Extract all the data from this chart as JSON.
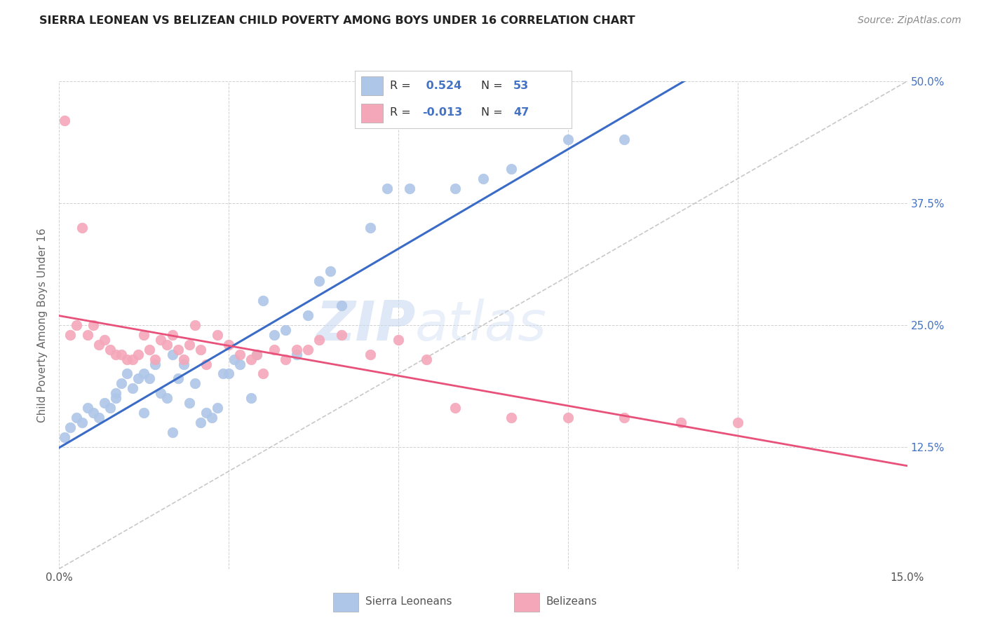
{
  "title": "SIERRA LEONEAN VS BELIZEAN CHILD POVERTY AMONG BOYS UNDER 16 CORRELATION CHART",
  "source": "Source: ZipAtlas.com",
  "ylabel": "Child Poverty Among Boys Under 16",
  "xlim": [
    0.0,
    0.15
  ],
  "ylim": [
    0.0,
    0.5
  ],
  "xticks": [
    0.0,
    0.03,
    0.06,
    0.09,
    0.12,
    0.15
  ],
  "xticklabels": [
    "0.0%",
    "",
    "",
    "",
    "",
    "15.0%"
  ],
  "yticks": [
    0.0,
    0.125,
    0.25,
    0.375,
    0.5
  ],
  "yticklabels": [
    "",
    "12.5%",
    "25.0%",
    "37.5%",
    "50.0%"
  ],
  "sierra_R": 0.524,
  "sierra_N": 53,
  "belizean_R": -0.013,
  "belizean_N": 47,
  "sierra_color": "#aec6e8",
  "sierra_line_color": "#3a6bc7",
  "belizean_color": "#f4a7b9",
  "belizean_line_color": "#e8517a",
  "diagonal_color": "#bbbbbb",
  "watermark_zip": "ZIP",
  "watermark_atlas": "atlas",
  "sierra_x": [
    0.001,
    0.002,
    0.003,
    0.004,
    0.005,
    0.006,
    0.007,
    0.008,
    0.009,
    0.01,
    0.01,
    0.011,
    0.012,
    0.013,
    0.014,
    0.015,
    0.015,
    0.016,
    0.017,
    0.018,
    0.019,
    0.02,
    0.02,
    0.021,
    0.022,
    0.023,
    0.024,
    0.025,
    0.026,
    0.027,
    0.028,
    0.029,
    0.03,
    0.031,
    0.032,
    0.034,
    0.035,
    0.036,
    0.038,
    0.04,
    0.042,
    0.044,
    0.046,
    0.048,
    0.05,
    0.055,
    0.058,
    0.062,
    0.07,
    0.075,
    0.08,
    0.09,
    0.1
  ],
  "sierra_y": [
    0.135,
    0.145,
    0.155,
    0.15,
    0.165,
    0.16,
    0.155,
    0.17,
    0.165,
    0.175,
    0.18,
    0.19,
    0.2,
    0.185,
    0.195,
    0.16,
    0.2,
    0.195,
    0.21,
    0.18,
    0.175,
    0.22,
    0.14,
    0.195,
    0.21,
    0.17,
    0.19,
    0.15,
    0.16,
    0.155,
    0.165,
    0.2,
    0.2,
    0.215,
    0.21,
    0.175,
    0.22,
    0.275,
    0.24,
    0.245,
    0.22,
    0.26,
    0.295,
    0.305,
    0.27,
    0.35,
    0.39,
    0.39,
    0.39,
    0.4,
    0.41,
    0.44,
    0.44
  ],
  "belizean_x": [
    0.001,
    0.002,
    0.003,
    0.004,
    0.005,
    0.006,
    0.007,
    0.008,
    0.009,
    0.01,
    0.011,
    0.012,
    0.013,
    0.014,
    0.015,
    0.016,
    0.017,
    0.018,
    0.019,
    0.02,
    0.021,
    0.022,
    0.023,
    0.024,
    0.025,
    0.026,
    0.028,
    0.03,
    0.032,
    0.034,
    0.035,
    0.036,
    0.038,
    0.04,
    0.042,
    0.044,
    0.046,
    0.05,
    0.055,
    0.06,
    0.065,
    0.07,
    0.08,
    0.09,
    0.1,
    0.11,
    0.12
  ],
  "belizean_y": [
    0.46,
    0.24,
    0.25,
    0.35,
    0.24,
    0.25,
    0.23,
    0.235,
    0.225,
    0.22,
    0.22,
    0.215,
    0.215,
    0.22,
    0.24,
    0.225,
    0.215,
    0.235,
    0.23,
    0.24,
    0.225,
    0.215,
    0.23,
    0.25,
    0.225,
    0.21,
    0.24,
    0.23,
    0.22,
    0.215,
    0.22,
    0.2,
    0.225,
    0.215,
    0.225,
    0.225,
    0.235,
    0.24,
    0.22,
    0.235,
    0.215,
    0.165,
    0.155,
    0.155,
    0.155,
    0.15,
    0.15
  ]
}
